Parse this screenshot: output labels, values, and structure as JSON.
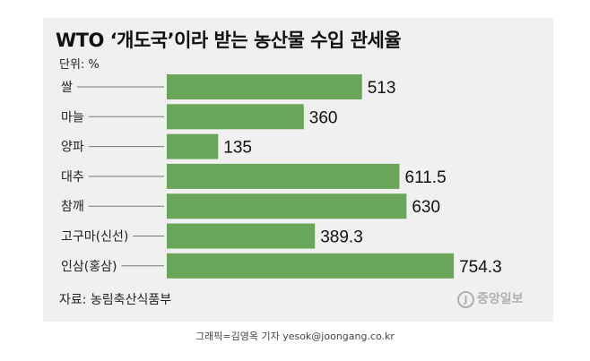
{
  "header": {
    "title": "WTO ‘개도국’이라 받는 농산물 수입 관세율",
    "unit": "단위: %"
  },
  "footer": {
    "source": "자료: 농림축산식품부",
    "logo_text": "중앙일보",
    "logo_mark": "J",
    "credit": "그래픽=김영옥 기자 yesok@joongang.co.kr"
  },
  "colors": {
    "bar": "#6aa65a",
    "panel": "#f0f0f0",
    "leader": "#777777"
  },
  "chart_data": {
    "type": "bar",
    "orientation": "horizontal",
    "categories": [
      "쌀",
      "마늘",
      "양파",
      "대추",
      "참깨",
      "고구마(신선)",
      "인삼(홍삼)"
    ],
    "values": [
      513,
      360,
      135,
      611.5,
      630,
      389.3,
      754.3
    ],
    "value_labels": [
      "513",
      "360",
      "135",
      "611.5",
      "630",
      "389.3",
      "754.3"
    ],
    "title": "WTO ‘개도국’이라 받는 농산물 수입 관세율",
    "unit": "%",
    "xlim": [
      0,
      800
    ],
    "grid": false,
    "legend": false
  }
}
